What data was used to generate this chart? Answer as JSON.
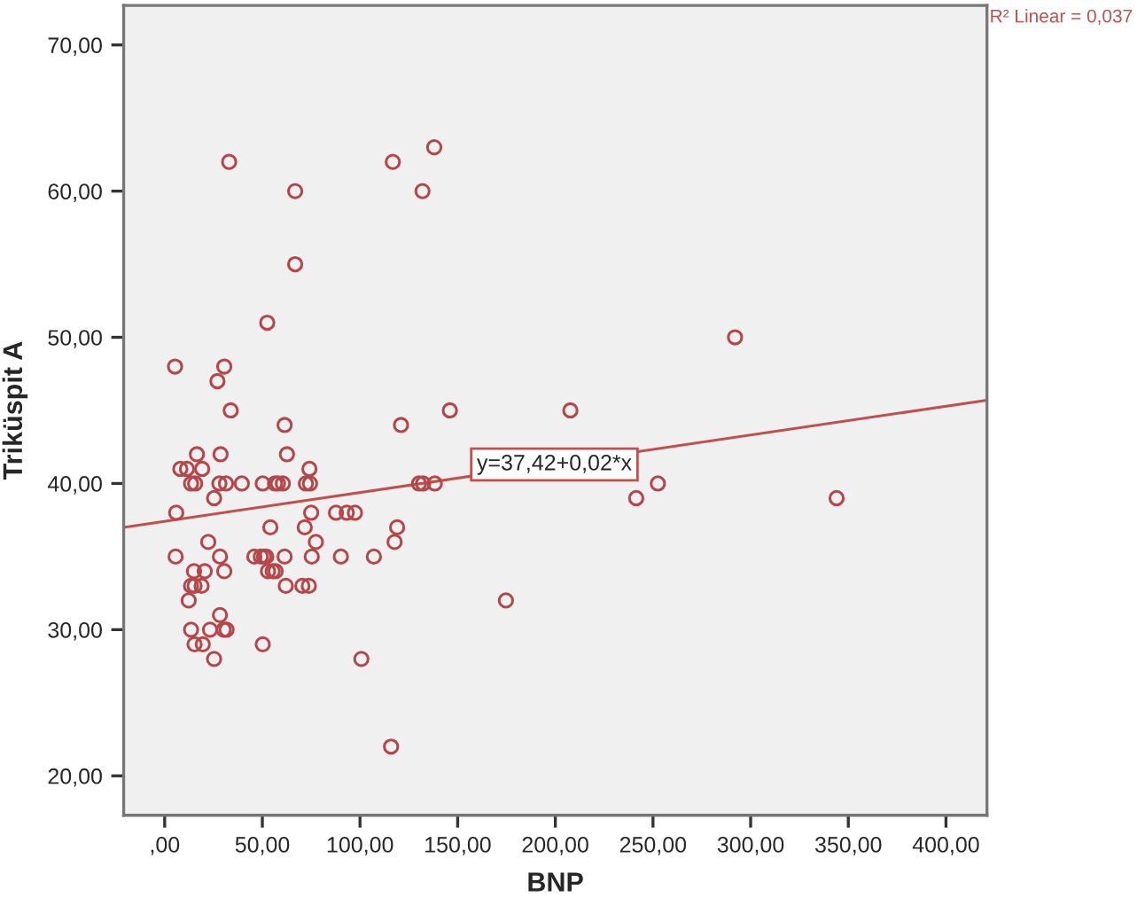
{
  "chart_data": {
    "type": "scatter",
    "xlabel": "BNP",
    "ylabel": "Triküspit A",
    "xlim": [
      -21,
      421
    ],
    "ylim": [
      17.3,
      72.7
    ],
    "xticks": [
      {
        "value": 0,
        "label": ",00"
      },
      {
        "value": 50,
        "label": "50,00"
      },
      {
        "value": 100,
        "label": "100,00"
      },
      {
        "value": 150,
        "label": "150,00"
      },
      {
        "value": 200,
        "label": "200,00"
      },
      {
        "value": 250,
        "label": "250,00"
      },
      {
        "value": 300,
        "label": "300,00"
      },
      {
        "value": 350,
        "label": "350,00"
      },
      {
        "value": 400,
        "label": "400,00"
      }
    ],
    "yticks": [
      {
        "value": 20,
        "label": "20,00"
      },
      {
        "value": 30,
        "label": "30,00"
      },
      {
        "value": 40,
        "label": "40,00"
      },
      {
        "value": 50,
        "label": "50,00"
      },
      {
        "value": 60,
        "label": "60,00"
      },
      {
        "value": 70,
        "label": "70,00"
      }
    ],
    "grid": false,
    "legend": false,
    "marker": "circle",
    "series": [
      {
        "color": "#b5474a",
        "x": [
          33,
          66.8,
          66.8,
          52.5,
          5.3,
          30.5,
          27,
          33.8,
          61.4,
          116.8,
          138,
          132,
          146,
          121,
          16.5,
          28.6,
          62.6,
          292,
          207.7,
          241.4,
          252.5,
          344,
          174.7,
          8.0,
          11.4,
          19.2,
          74.1,
          13.5,
          15.6,
          28,
          31.4,
          39.5,
          50.2,
          56.5,
          58,
          60.5,
          72.3,
          74.4,
          130.2,
          132.3,
          138.3,
          25.3,
          5.9,
          75,
          87.7,
          93.2,
          97.4,
          54.1,
          71.7,
          119,
          22.3,
          77.4,
          117.7,
          5.6,
          28.3,
          45.9,
          49.2,
          50.8,
          52,
          61.4,
          75.3,
          90.2,
          107.1,
          15,
          20.5,
          30.5,
          52.9,
          55.3,
          56.8,
          13.5,
          15.3,
          18.9,
          62,
          70.5,
          73.8,
          12.3,
          28.3,
          13.5,
          23.2,
          30.2,
          31.7,
          15.3,
          19.5,
          50.2,
          25.3,
          100.7,
          115.9
        ],
        "values": [
          62,
          60,
          55,
          51,
          48,
          48,
          47,
          45,
          44,
          62,
          63,
          60,
          45,
          44,
          42,
          42,
          42,
          50,
          45,
          39,
          40,
          39,
          32,
          41,
          41,
          41,
          41,
          40,
          40,
          40,
          40,
          40,
          40,
          40,
          40,
          40,
          40,
          40,
          40,
          40,
          40,
          39,
          38,
          38,
          38,
          38,
          38,
          37,
          37,
          37,
          36,
          36,
          36,
          35,
          35,
          35,
          35,
          35,
          35,
          35,
          35,
          35,
          35,
          34,
          34,
          34,
          34,
          34,
          34,
          33,
          33,
          33,
          33,
          33,
          33,
          32,
          31,
          30,
          30,
          30,
          30,
          29,
          29,
          29,
          28,
          28,
          22
        ]
      },
      {
        "type": "line",
        "color": "#c0504d",
        "marker": "none",
        "x": [
          -21,
          421
        ],
        "values": [
          37.0,
          45.7
        ]
      }
    ],
    "annotations": [
      {
        "text": "y=37,42+0,02*x",
        "x": 199.5,
        "y": 41.3
      },
      "R² Linear = 0,037"
    ]
  }
}
